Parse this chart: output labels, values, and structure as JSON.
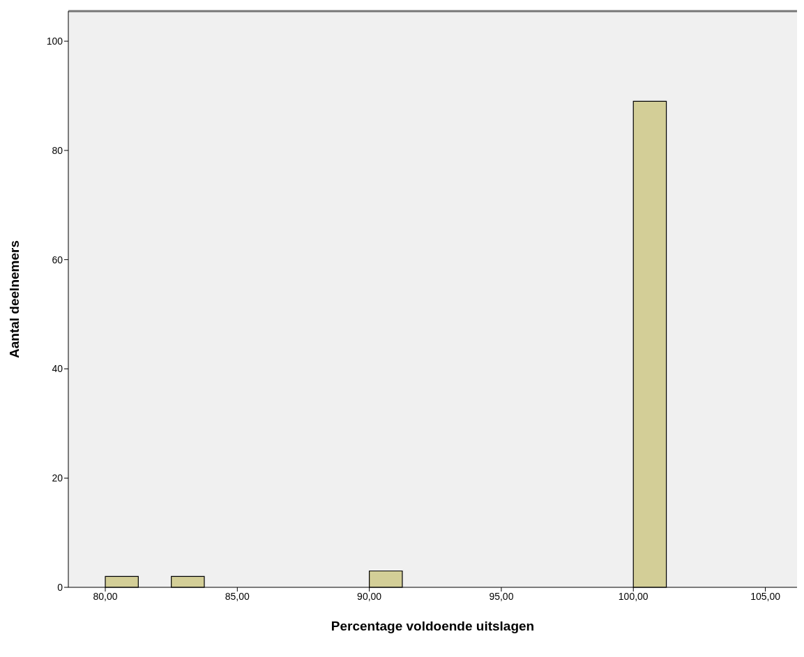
{
  "chart_data": {
    "type": "histogram",
    "xlabel": "Percentage voldoende uitslagen",
    "ylabel": "Aantal deelnemers",
    "bins": [
      80,
      81.25,
      82.5,
      83.75,
      85,
      86.25,
      87.5,
      88.75,
      90,
      91.25,
      92.5,
      93.75,
      95,
      96.25,
      97.5,
      98.75,
      100,
      101.25,
      102.5
    ],
    "values": [
      2,
      0,
      2,
      0,
      0,
      0,
      0,
      0,
      3,
      0,
      0,
      0,
      0,
      0,
      0,
      0,
      89,
      0
    ],
    "color": "#d3ce97",
    "xlim": [
      78.6,
      106.2
    ],
    "ylim": [
      0,
      105.5
    ],
    "xticks": [
      {
        "value": 80,
        "label": "80,00"
      },
      {
        "value": 85,
        "label": "85,00"
      },
      {
        "value": 90,
        "label": "90,00"
      },
      {
        "value": 95,
        "label": "95,00"
      },
      {
        "value": 100,
        "label": "100,00"
      },
      {
        "value": 105,
        "label": "105,00"
      }
    ],
    "yticks": [
      0,
      20,
      40,
      60,
      80,
      100
    ],
    "grid": false,
    "legend": false
  }
}
